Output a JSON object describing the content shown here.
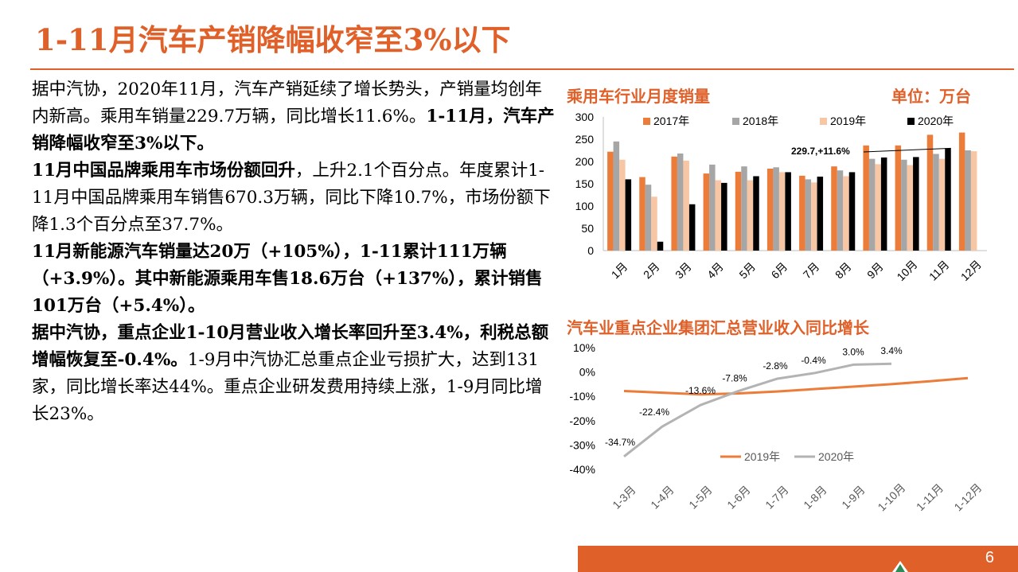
{
  "title": "1-11月汽车产销降幅收窄至3%以下",
  "paragraphs": [
    [
      {
        "t": "据中汽协，2020年11月，汽车产销延续了增长势头，产销量均创年内新高。乘用车销量229.7万辆，同比增长11.6%。",
        "b": false
      },
      {
        "t": "1-11月，汽车产销降幅收窄至3%以下。",
        "b": true
      }
    ],
    [
      {
        "t": "11月中国品牌乘用车市场份额回升",
        "b": true
      },
      {
        "t": "，上升2.1个百分点。年度累计1-11月中国品牌乘用车销售670.3万辆，同比下降10.7%，市场份额下降1.3个百分点至37.7%。",
        "b": false
      }
    ],
    [
      {
        "t": "11月新能源汽车销量达20万（+105%），1-11累计111万辆（+3.9%）。其中新能源乘用车售18.6万台（+137%），累计销售101万台（+5.4%）。",
        "b": true
      }
    ],
    [
      {
        "t": "据中汽协，重点企业1-10月营业收入增长率回升至3.4%，利税总额增幅恢复至-0.4%。",
        "b": true
      },
      {
        "t": "1-9月中汽协汇总重点企业亏损扩大，达到131家，同比增长率达44%。重点企业研发费用持续上涨，1-9月同比增长23%。",
        "b": false
      }
    ]
  ],
  "chart1": {
    "title": "乘用车行业月度销量",
    "unit": "单位：万台"
  },
  "chart2": {
    "title": "汽车业重点企业集团汇总营业收入同比增长"
  },
  "page_number": "6",
  "colors": {
    "accent": "#e0602a",
    "s2017": "#ec7c39",
    "s2018": "#a6a6a6",
    "s2019": "#f7c6a4",
    "s2020": "#000000",
    "line2019": "#ec7c39",
    "line2020": "#b3b3b3"
  },
  "chart_data": [
    {
      "type": "bar",
      "title": "乘用车行业月度销量",
      "categories": [
        "1月",
        "2月",
        "3月",
        "4月",
        "5月",
        "6月",
        "7月",
        "8月",
        "9月",
        "10月",
        "11月",
        "12月"
      ],
      "series": [
        {
          "name": "2017年",
          "values": [
            222,
            165,
            211,
            173,
            177,
            184,
            168,
            189,
            236,
            236,
            260,
            265
          ]
        },
        {
          "name": "2018年",
          "values": [
            245,
            148,
            218,
            193,
            189,
            187,
            160,
            180,
            206,
            204,
            217,
            225
          ]
        },
        {
          "name": "2019年",
          "values": [
            204,
            121,
            202,
            158,
            158,
            176,
            153,
            167,
            194,
            192,
            206,
            223
          ]
        },
        {
          "name": "2020年",
          "values": [
            160,
            20,
            104,
            152,
            167,
            176,
            166,
            176,
            209,
            210,
            229.7,
            null
          ]
        }
      ],
      "ylim": [
        0,
        300
      ],
      "yticks": [
        0,
        50,
        100,
        150,
        200,
        250,
        300
      ],
      "annotation": "229.7,+11.6%",
      "legend": "top"
    },
    {
      "type": "line",
      "title": "汽车业重点企业集团汇总营业收入同比增长",
      "categories": [
        "1-3月",
        "1-4月",
        "1-5月",
        "1-6月",
        "1-7月",
        "1-8月",
        "1-9月",
        "1-10月",
        "1-11月",
        "1-12月"
      ],
      "series": [
        {
          "name": "2019年",
          "values": [
            -7.8,
            -8.5,
            -9.2,
            -8.8,
            -8.0,
            -7.0,
            -6.0,
            -5.0,
            -3.8,
            -2.5
          ]
        },
        {
          "name": "2020年",
          "values": [
            -34.7,
            -22.4,
            -13.6,
            -7.8,
            -2.8,
            -0.4,
            3.0,
            3.4,
            null,
            null
          ]
        }
      ],
      "data_labels": [
        "-34.7%",
        "-22.4%",
        "-13.6%",
        "-7.8%",
        "-2.8%",
        "-0.4%",
        "3.0%",
        "3.4%"
      ],
      "ylim": [
        -40,
        10
      ],
      "yticks": [
        "10%",
        "0%",
        "-10%",
        "-20%",
        "-30%",
        "-40%"
      ],
      "legend": "bottom"
    }
  ]
}
